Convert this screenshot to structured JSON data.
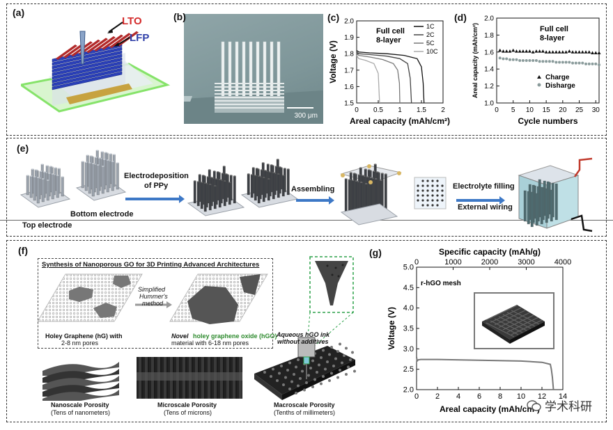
{
  "panels": {
    "a": {
      "label": "(a)",
      "lto": "LTO",
      "lfp": "LFP"
    },
    "b": {
      "label": "(b)",
      "scale": "300 μm"
    },
    "c": {
      "label": "(c)"
    },
    "d": {
      "label": "(d)"
    },
    "e": {
      "label": "(e)",
      "top_electrode": "Top electrode",
      "bottom_electrode": "Bottom electrode",
      "electrodeposition": "Electrodeposition",
      "of_ppy": "of PPy",
      "assembling": "Assembling",
      "electrolyte_filling": "Electrolyte filling",
      "external_wiring": "External wiring"
    },
    "f": {
      "label": "(f)",
      "synthesis_title": "Synthesis of Nanoporous GO for 3D Printing Advanced Architectures",
      "simplified": "Simplified",
      "hummers": "Hummer's",
      "method": "method",
      "hg_line1": "Holey Graphene (hG) with",
      "hg_line2": "2-8 nm pores",
      "hgo_novel": "Novel",
      "hgo_name": "holey graphene oxide (hGO)",
      "hgo_line2": "material with 6-18 nm pores",
      "ink_line1": "Aqueous hGO ink",
      "ink_line2": "without additives",
      "nano_title": "Nanoscale Porosity",
      "nano_sub": "(Tens of nanometers)",
      "micro_title": "Microscale Porosity",
      "micro_sub": "(Tens of microns)",
      "macro_title": "Macroscale Porosity",
      "macro_sub": "(Tenths of millimeters)"
    },
    "g": {
      "label": "(g)"
    }
  },
  "watermark": "学术科研",
  "chart_data": [
    {
      "id": "c",
      "type": "line",
      "annotation": [
        "Full cell",
        "8-layer"
      ],
      "xlabel": "Areal capacity (mAh/cm²)",
      "ylabel": "Voltage (V)",
      "xlim": [
        0,
        2.0
      ],
      "ylim": [
        1.5,
        2.0
      ],
      "xticks": [
        "0",
        "0.5",
        "1",
        "1.5",
        "2"
      ],
      "yticks": [
        "1.5",
        "1.6",
        "1.7",
        "1.8",
        "1.9",
        "2.0"
      ],
      "legend_position": "top-right",
      "series": [
        {
          "name": "1C",
          "color": "#111111",
          "x": [
            0,
            0.05,
            0.3,
            0.7,
            1.1,
            1.4,
            1.5,
            1.54,
            1.56
          ],
          "y": [
            1.82,
            1.81,
            1.805,
            1.8,
            1.79,
            1.77,
            1.72,
            1.62,
            1.5
          ]
        },
        {
          "name": "2C",
          "color": "#444444",
          "x": [
            0,
            0.05,
            0.3,
            0.7,
            1.0,
            1.18,
            1.24,
            1.27
          ],
          "y": [
            1.81,
            1.8,
            1.795,
            1.785,
            1.77,
            1.74,
            1.65,
            1.5
          ]
        },
        {
          "name": "5C",
          "color": "#777777",
          "x": [
            0,
            0.05,
            0.3,
            0.6,
            0.85,
            0.95,
            0.99,
            1.0
          ],
          "y": [
            1.8,
            1.79,
            1.78,
            1.765,
            1.74,
            1.7,
            1.62,
            1.5
          ]
        },
        {
          "name": "10C",
          "color": "#aaaaaa",
          "x": [
            0,
            0.05,
            0.2,
            0.4,
            0.5,
            0.53
          ],
          "y": [
            1.79,
            1.77,
            1.76,
            1.74,
            1.68,
            1.5
          ]
        }
      ]
    },
    {
      "id": "d",
      "type": "scatter",
      "annotation": [
        "Full cell",
        "8-layer"
      ],
      "xlabel": "Cycle numbers",
      "ylabel": "Areal capacity (mAh/cm²)",
      "xlim": [
        0,
        31
      ],
      "ylim": [
        1.0,
        2.0
      ],
      "xticks": [
        "0",
        "5",
        "10",
        "15",
        "20",
        "25",
        "30"
      ],
      "yticks": [
        "1.0",
        "1.2",
        "1.4",
        "1.6",
        "1.8",
        "2.0"
      ],
      "legend_position": "lower-right",
      "series": [
        {
          "name": "Charge",
          "marker": "triangle",
          "x": [
            1,
            2,
            3,
            4,
            5,
            6,
            7,
            8,
            9,
            10,
            11,
            12,
            13,
            14,
            15,
            16,
            17,
            18,
            19,
            20,
            21,
            22,
            23,
            24,
            25,
            26,
            27,
            28,
            29,
            30,
            31
          ],
          "y": [
            1.62,
            1.61,
            1.61,
            1.61,
            1.62,
            1.61,
            1.61,
            1.61,
            1.61,
            1.61,
            1.6,
            1.61,
            1.61,
            1.61,
            1.6,
            1.6,
            1.6,
            1.6,
            1.6,
            1.6,
            1.6,
            1.61,
            1.6,
            1.6,
            1.6,
            1.6,
            1.6,
            1.6,
            1.59,
            1.59,
            1.59
          ]
        },
        {
          "name": "Disharge",
          "marker": "circle",
          "x": [
            1,
            2,
            3,
            4,
            5,
            6,
            7,
            8,
            9,
            10,
            11,
            12,
            13,
            14,
            15,
            16,
            17,
            18,
            19,
            20,
            21,
            22,
            23,
            24,
            25,
            26,
            27,
            28,
            29,
            30,
            31
          ],
          "y": [
            1.53,
            1.52,
            1.52,
            1.51,
            1.51,
            1.51,
            1.5,
            1.5,
            1.5,
            1.5,
            1.5,
            1.5,
            1.49,
            1.49,
            1.49,
            1.49,
            1.49,
            1.48,
            1.48,
            1.48,
            1.48,
            1.48,
            1.47,
            1.47,
            1.47,
            1.47,
            1.46,
            1.46,
            1.46,
            1.46,
            1.45
          ]
        }
      ]
    },
    {
      "id": "g",
      "type": "line",
      "annotation": [
        "r-hGO mesh"
      ],
      "xlabel": "Areal capacity (mAh/cm²)",
      "x2label": "Specific capacity (mAh/g)",
      "ylabel": "Voltage (V)",
      "xlim": [
        0,
        14
      ],
      "x2lim": [
        0,
        4000
      ],
      "ylim": [
        2.0,
        5.0
      ],
      "xticks": [
        "0",
        "2",
        "4",
        "6",
        "8",
        "10",
        "12",
        "14"
      ],
      "x2ticks": [
        "0",
        "1000",
        "2000",
        "3000",
        "4000"
      ],
      "yticks": [
        "2.0",
        "2.5",
        "3.0",
        "3.5",
        "4.0",
        "4.5",
        "5.0"
      ],
      "series": [
        {
          "name": "",
          "color": "#777777",
          "x": [
            0,
            0.05,
            0.15,
            0.4,
            2,
            6,
            10,
            12,
            12.8,
            12.9,
            13.0,
            13.1
          ],
          "y": [
            2.8,
            2.7,
            2.73,
            2.74,
            2.74,
            2.72,
            2.7,
            2.67,
            2.62,
            2.5,
            2.3,
            2.0
          ]
        }
      ]
    }
  ]
}
